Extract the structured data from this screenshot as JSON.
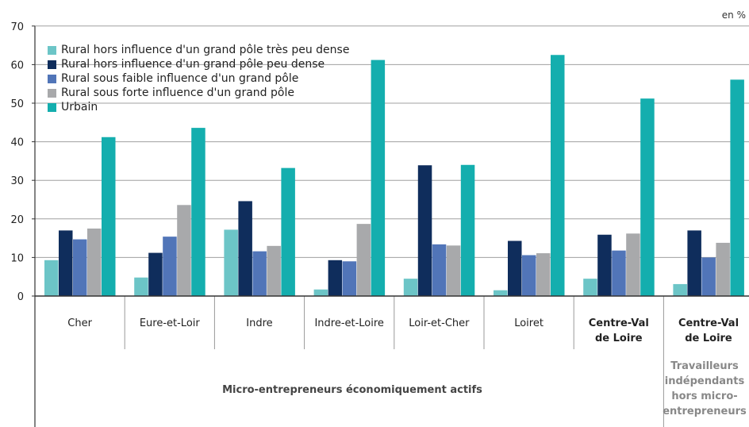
{
  "unit_label": "en %",
  "colors": [
    "#6cc5c7",
    "#0f2d5c",
    "#5175b8",
    "#a8a9ab",
    "#14aeae"
  ],
  "chart_data": {
    "type": "bar",
    "ylim": [
      0,
      70
    ],
    "yticks": [
      "0",
      "10",
      "20",
      "30",
      "40",
      "50",
      "60",
      "70"
    ],
    "grid": true,
    "legend_position": "top-left",
    "categories": [
      "Cher",
      "Eure-et-Loir",
      "Indre",
      "Indre-et-Loire",
      "Loir-et-Cher",
      "Loiret",
      "Centre-Val de Loire",
      "Centre-Val de Loire"
    ],
    "category_lines": [
      [
        "Cher"
      ],
      [
        "Eure-et-Loir"
      ],
      [
        "Indre"
      ],
      [
        "Indre-et-Loire"
      ],
      [
        "Loir-et-Cher"
      ],
      [
        "Loiret"
      ],
      [
        "Centre-Val",
        "de Loire"
      ],
      [
        "Centre-Val",
        "de Loire"
      ]
    ],
    "bold_categories": [
      6,
      7
    ],
    "series": [
      {
        "name": "Rural hors influence d'un grand pôle très peu dense",
        "values": [
          9.3,
          4.8,
          17.2,
          1.7,
          4.5,
          1.5,
          4.5,
          3.1
        ]
      },
      {
        "name": "Rural hors influence d'un grand pôle peu dense",
        "values": [
          17.0,
          11.2,
          24.6,
          9.3,
          33.9,
          14.3,
          15.9,
          17.0
        ]
      },
      {
        "name": "Rural sous faible influence d'un grand pôle",
        "values": [
          14.7,
          15.4,
          11.6,
          9.0,
          13.4,
          10.6,
          11.8,
          10.0
        ]
      },
      {
        "name": "Rural sous forte influence d'un grand pôle",
        "values": [
          17.5,
          23.6,
          13.0,
          18.7,
          13.1,
          11.1,
          16.2,
          13.8
        ]
      },
      {
        "name": "Urbain",
        "values": [
          41.2,
          43.6,
          33.2,
          61.2,
          34.0,
          62.5,
          51.2,
          56.1
        ]
      }
    ],
    "group_labels": [
      {
        "label": "Micro-entrepreneurs économiquement actifs"
      },
      {
        "label": "Travailleurs indépendants hors micro-entrepreneurs",
        "lines": [
          "Travailleurs",
          "indépendants",
          "hors micro-",
          "entrepreneurs"
        ]
      }
    ]
  }
}
